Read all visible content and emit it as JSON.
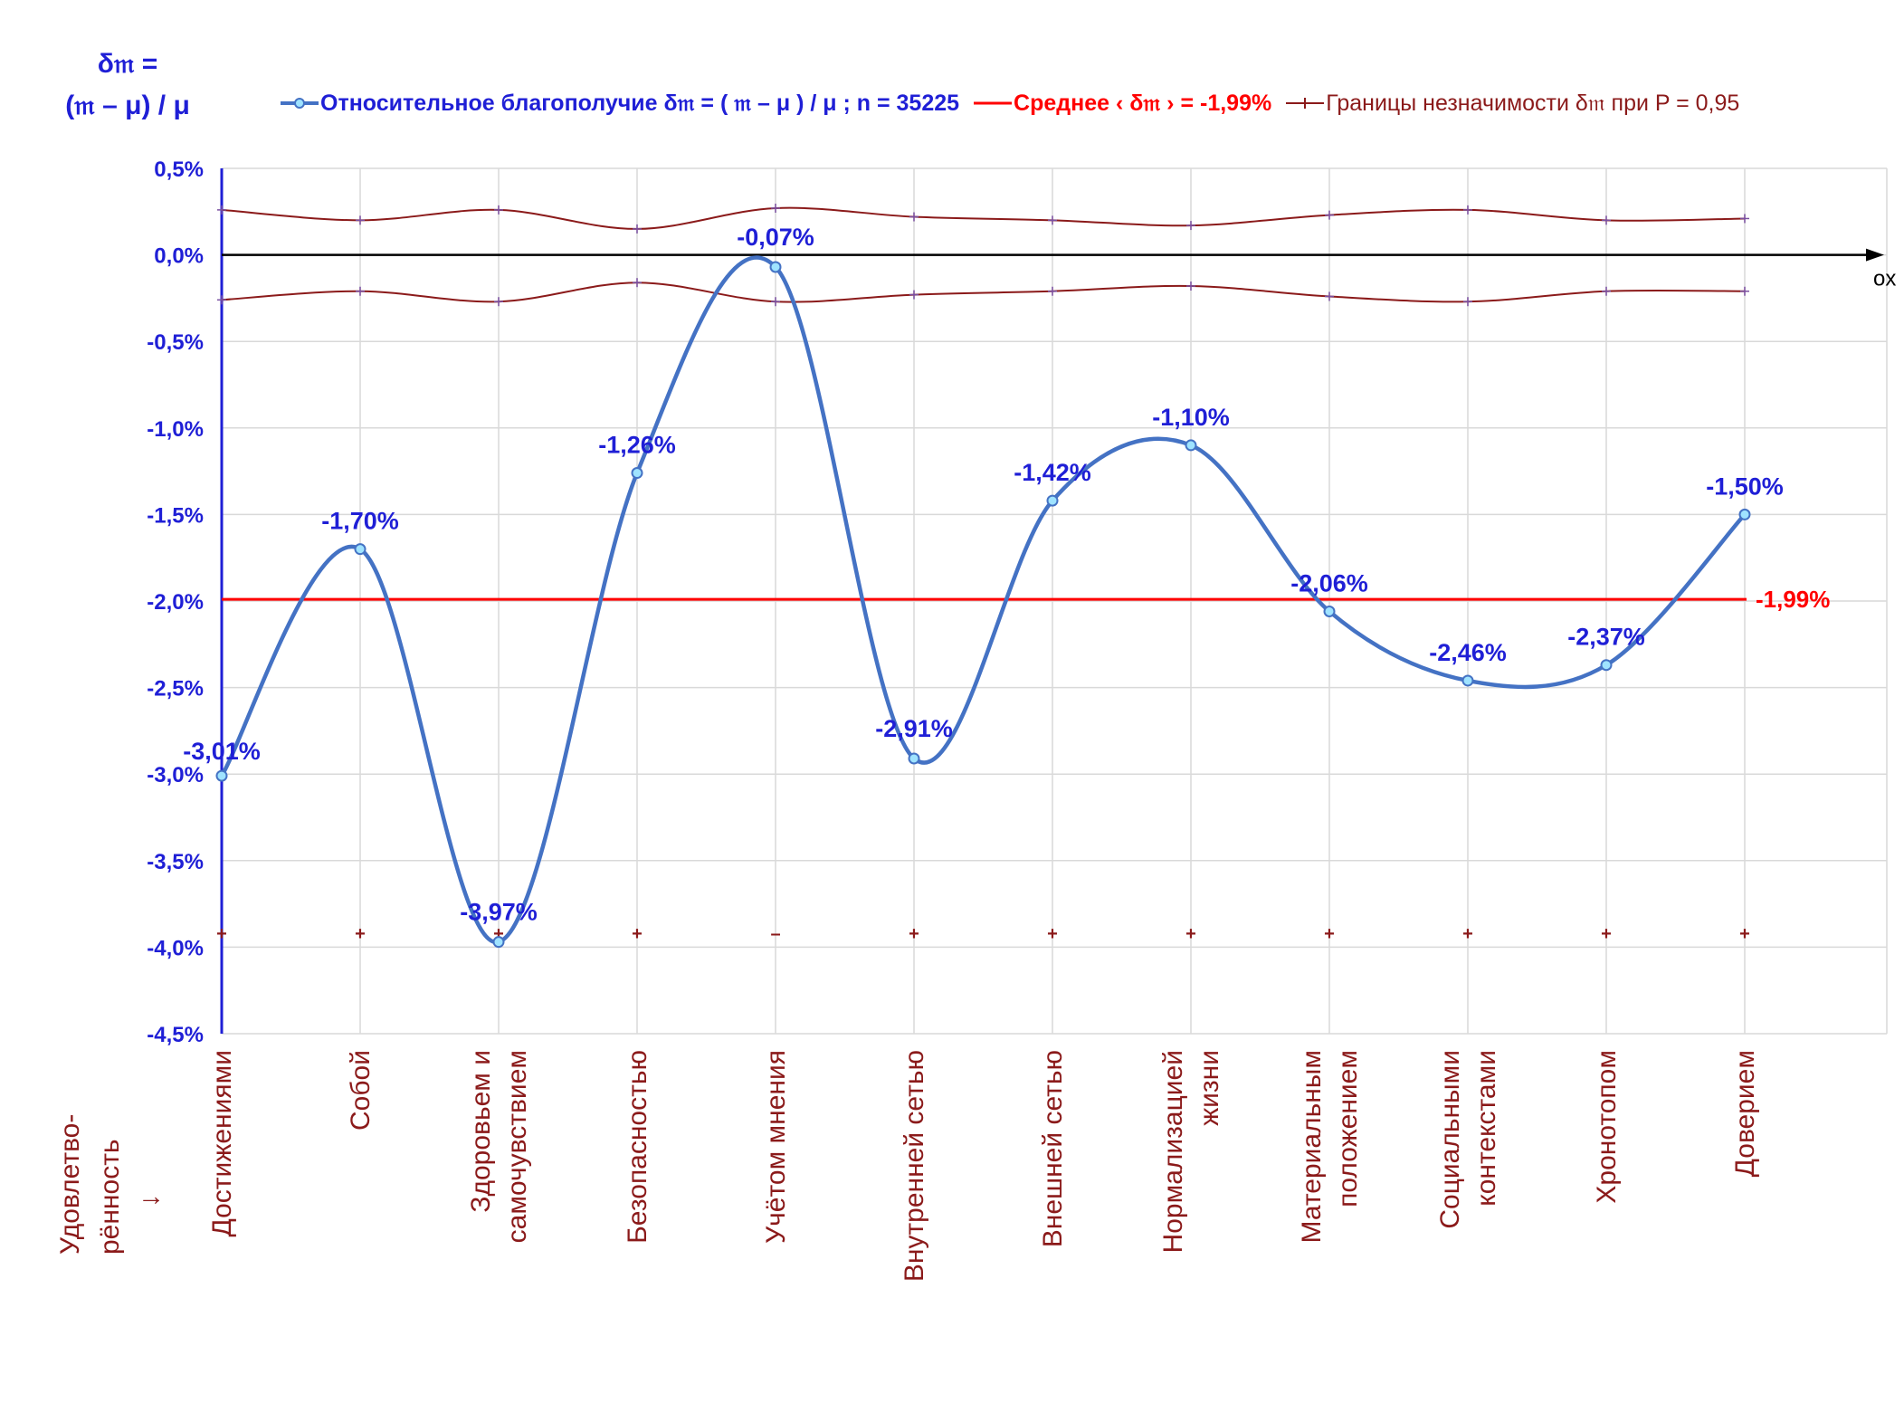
{
  "y_axis_title": [
    "δ𝔪 =",
    "(𝔪 – μ) / μ"
  ],
  "x_axis_name": "ox",
  "row_title": [
    "Удовлетво-",
    "рённость",
    "↓"
  ],
  "legend": {
    "series_label": "Относительное благополучие δ𝔪 = ( 𝔪 – μ ) / μ ; n = 35225",
    "mean_label": "Среднее ‹ δ𝔪 › = -1,99%",
    "bounds_label": "Границы незначимости δ𝔪 при P = 0,95"
  },
  "colors": {
    "series": "#4472c4",
    "marker_fill": "#9fe3ff",
    "data_label": "#1f1fd6",
    "mean": "#ff0000",
    "bounds": "#8b1a1a",
    "axis": "#1f1fd6",
    "grid": "#d9d9d9",
    "category_text": "#8b1a1a"
  },
  "chart_data": {
    "type": "line",
    "categories": [
      [
        "Достижениями"
      ],
      [
        "Собой"
      ],
      [
        "Здоровьем и",
        "самочувствием"
      ],
      [
        "Безопасностью"
      ],
      [
        "Учётом мнения"
      ],
      [
        "Внутренней сетью"
      ],
      [
        "Внешней сетью"
      ],
      [
        "Нормализацией",
        "жизни"
      ],
      [
        "Материальным",
        "положением"
      ],
      [
        "Социальными",
        "контекстами"
      ],
      [
        "Хронотопом"
      ],
      [
        "Доверием"
      ]
    ],
    "series": [
      {
        "name": "Относительное благополучие δ𝔪 = ( 𝔪 – μ ) / μ ; n = 35225",
        "values": [
          -3.01,
          -1.7,
          -3.97,
          -1.26,
          -0.07,
          -2.91,
          -1.42,
          -1.1,
          -2.06,
          -2.46,
          -2.37,
          -1.5
        ],
        "labels": [
          "-3,01%",
          "-1,70%",
          "-3,97%",
          "-1,26%",
          "-0,07%",
          "-2,91%",
          "-1,42%",
          "-1,10%",
          "-2,06%",
          "-2,46%",
          "-2,37%",
          "-1,50%"
        ]
      }
    ],
    "mean": {
      "value": -1.99,
      "label": "-1,99%"
    },
    "bounds": {
      "upper": [
        0.26,
        0.2,
        0.26,
        0.15,
        0.27,
        0.22,
        0.2,
        0.17,
        0.23,
        0.26,
        0.2,
        0.21
      ],
      "lower": [
        -0.26,
        -0.21,
        -0.27,
        -0.16,
        -0.27,
        -0.23,
        -0.21,
        -0.18,
        -0.24,
        -0.27,
        -0.21,
        -0.21
      ]
    },
    "bottom_markers": [
      "+",
      "+",
      "+",
      "+",
      "–",
      "+",
      "+",
      "+",
      "+",
      "+",
      "+",
      "+"
    ],
    "bottom_markers_level": -3.92,
    "ylim": [
      -4.5,
      0.5
    ],
    "yticks": [
      0.5,
      0.0,
      -0.5,
      -1.0,
      -1.5,
      -2.0,
      -2.5,
      -3.0,
      -3.5,
      -4.0,
      -4.5
    ],
    "ytick_labels": [
      "0,5%",
      "0,0%",
      "-0,5%",
      "-1,0%",
      "-1,5%",
      "-2,0%",
      "-2,5%",
      "-3,0%",
      "-3,5%",
      "-4,0%",
      "-4,5%"
    ],
    "grid": true,
    "legend_position": "top"
  }
}
